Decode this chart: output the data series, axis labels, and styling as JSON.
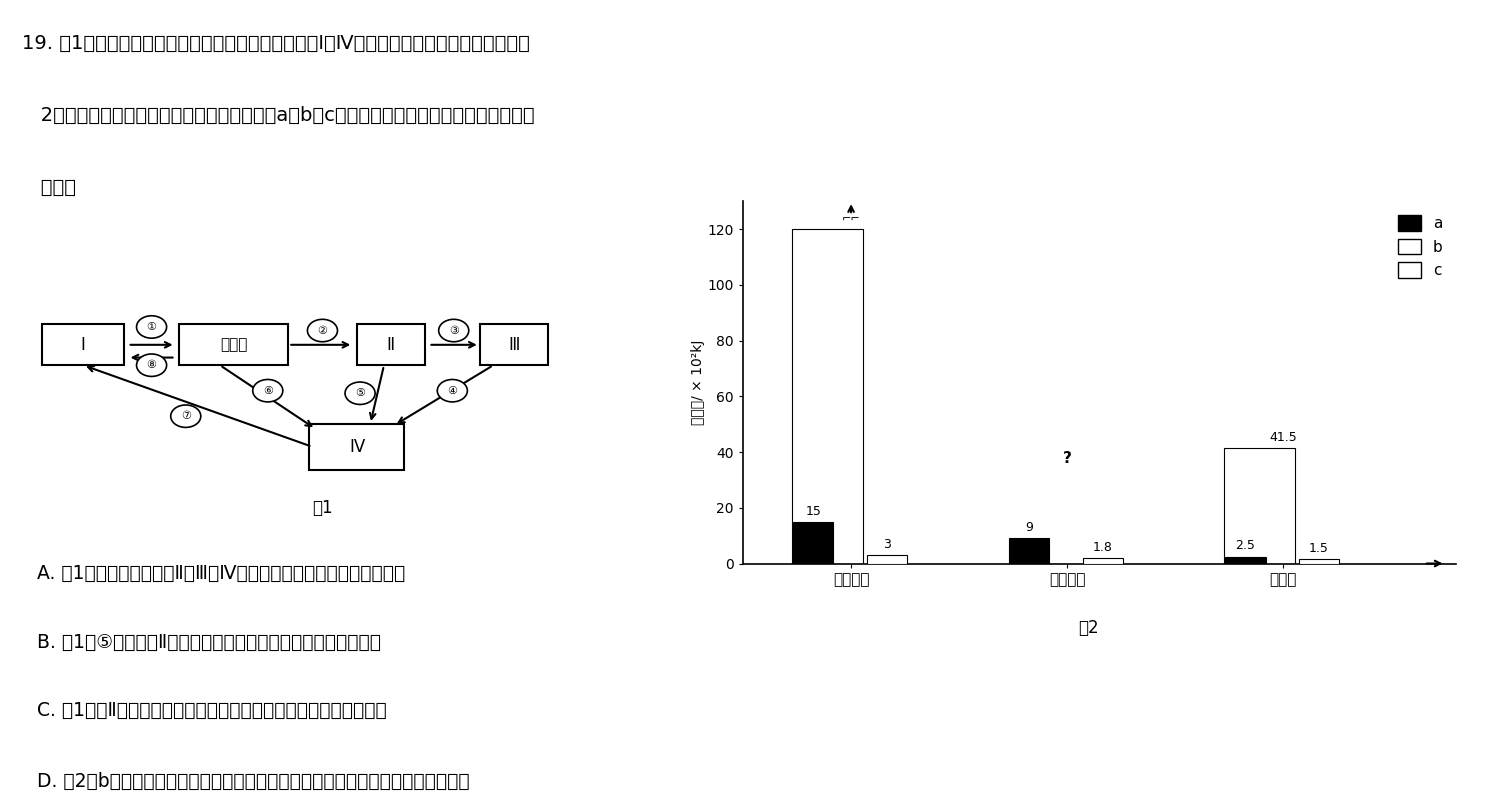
{
  "title_text": "19. 图1为某草原生态系统中部分碳循环示意图，其中Ⅰ～Ⅳ代表生态系统的不同组成成分；图\n   2为该生态系统二年内能量流动的部分数据（a、b、c表示不同的营养级）。下列有关叙述正\n   确的是",
  "bar_groups": [
    "同化作用",
    "呼吸作用",
    "未利用"
  ],
  "bar_a": [
    15,
    9,
    2.5
  ],
  "bar_b": [
    120,
    0,
    41.5
  ],
  "bar_c": [
    3,
    1.8,
    1.5
  ],
  "bar_b_question": [
    0,
    1,
    0
  ],
  "ylim": [
    0,
    130
  ],
  "yticks": [
    0,
    20,
    40,
    60,
    80,
    100,
    120
  ],
  "ylabel": "能量值/ × 10²kJ",
  "fig2_label": "图2",
  "fig1_label": "图1",
  "answer_A": "A. 图1中能量沿生产者、Ⅱ、Ⅲ和Ⅳ构成的食物链单向流动且逐级递减",
  "answer_B": "B. 图1中⑤如果表示Ⅱ的粪便中的能量，则属于生产者同化的能量",
  "answer_C": "C. 图1所示Ⅱ的能量流动去向缺少呼吸作用中以热能形式散失的部分",
  "answer_D": "D. 图2中b代表生产者的能量，且该生态系统中能量传递效率随营养级的升高而升高",
  "bg_color": "#ffffff",
  "text_color": "#000000"
}
